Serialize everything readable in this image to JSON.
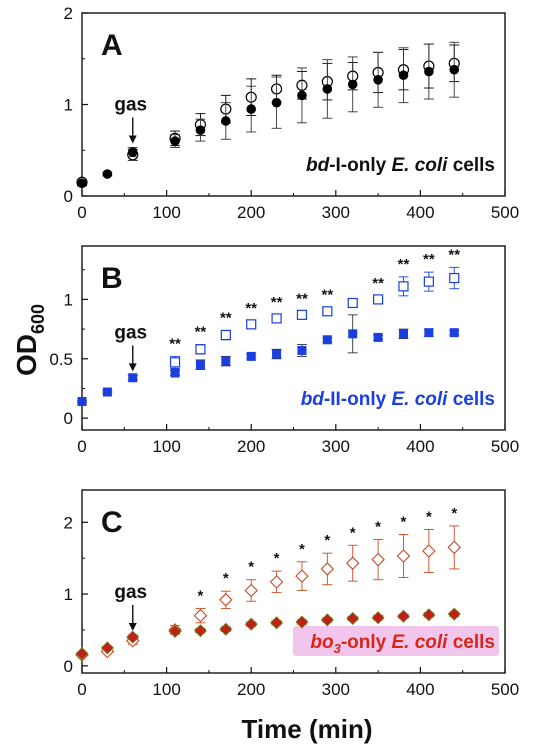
{
  "figure": {
    "ylabel_main": "OD",
    "ylabel_sub": "600",
    "xlabel": "Time (min)"
  },
  "chart_data": [
    {
      "type": "scatter",
      "panel_letter": "A",
      "xlim": [
        0,
        500
      ],
      "ylim": [
        0,
        2
      ],
      "xticks": [
        0,
        100,
        200,
        300,
        400,
        500
      ],
      "yticks": [
        0,
        1,
        2
      ],
      "gas_label": "gas",
      "gas_time": 60,
      "caption_parts": [
        {
          "text": "bd",
          "italic": true
        },
        {
          "text": "-I-only ",
          "italic": false
        },
        {
          "text": "E. coli",
          "italic": true
        },
        {
          "text": " cells",
          "italic": false
        }
      ],
      "caption_color": "#111111",
      "series": [
        {
          "marker": "circle-open",
          "color": "#000000",
          "x": [
            0,
            60,
            110,
            140,
            170,
            200,
            230,
            260,
            290,
            320,
            350,
            380,
            410,
            440
          ],
          "y": [
            0.15,
            0.45,
            0.63,
            0.78,
            0.95,
            1.08,
            1.17,
            1.21,
            1.25,
            1.31,
            1.35,
            1.38,
            1.42,
            1.45
          ],
          "err": [
            0.03,
            0.06,
            0.08,
            0.12,
            0.15,
            0.2,
            0.15,
            0.15,
            0.2,
            0.15,
            0.22,
            0.22,
            0.24,
            0.2
          ],
          "stars": []
        },
        {
          "marker": "circle-filled",
          "color": "#000000",
          "x": [
            0,
            30,
            60,
            110,
            140,
            170,
            200,
            230,
            260,
            290,
            320,
            350,
            380,
            410,
            440
          ],
          "y": [
            0.14,
            0.24,
            0.48,
            0.6,
            0.72,
            0.82,
            0.95,
            1.02,
            1.1,
            1.17,
            1.22,
            1.27,
            1.32,
            1.36,
            1.38
          ],
          "err": [
            0.03,
            0.02,
            0.05,
            0.07,
            0.12,
            0.2,
            0.25,
            0.28,
            0.3,
            0.32,
            0.3,
            0.3,
            0.3,
            0.3,
            0.3
          ],
          "stars": []
        }
      ]
    },
    {
      "type": "scatter",
      "panel_letter": "B",
      "xlim": [
        0,
        500
      ],
      "ylim": [
        -0.1,
        1.45
      ],
      "xticks": [
        0,
        100,
        200,
        300,
        400,
        500
      ],
      "yticks": [
        0,
        0.5,
        1
      ],
      "gas_label": "gas",
      "gas_time": 60,
      "caption_parts": [
        {
          "text": "bd",
          "italic": true
        },
        {
          "text": "-II-only ",
          "italic": false
        },
        {
          "text": "E. coli",
          "italic": true
        },
        {
          "text": " cells",
          "italic": false
        }
      ],
      "caption_color": "#1a3fe0",
      "series": [
        {
          "marker": "square-open",
          "color": "#1a3fe0",
          "x": [
            110,
            140,
            170,
            200,
            230,
            260,
            290,
            320,
            350,
            380,
            410,
            440
          ],
          "y": [
            0.47,
            0.58,
            0.7,
            0.79,
            0.84,
            0.87,
            0.9,
            0.97,
            1.0,
            1.11,
            1.15,
            1.18
          ],
          "err": [
            0.05,
            0.04,
            0.04,
            0.03,
            0.03,
            0.03,
            0.03,
            0.03,
            0.03,
            0.08,
            0.08,
            0.09
          ],
          "stars": [
            "**",
            "**",
            "**",
            "**",
            "**",
            "**",
            "**",
            "",
            "**",
            "**",
            "**",
            "**"
          ]
        },
        {
          "marker": "square-filled",
          "color": "#1a3fe0",
          "x": [
            0,
            30,
            60,
            110,
            140,
            170,
            200,
            230,
            260,
            290,
            320,
            350,
            380,
            410,
            440
          ],
          "y": [
            0.14,
            0.22,
            0.34,
            0.38,
            0.45,
            0.48,
            0.52,
            0.54,
            0.57,
            0.66,
            0.71,
            0.68,
            0.71,
            0.72,
            0.72
          ],
          "err": [
            0.01,
            0.01,
            0.02,
            0.02,
            0.04,
            0.04,
            0.02,
            0.04,
            0.05,
            0.02,
            0.16,
            0.02,
            0.04,
            0.03,
            0.02
          ],
          "stars": []
        }
      ]
    },
    {
      "type": "scatter",
      "panel_letter": "C",
      "xlim": [
        0,
        500
      ],
      "ylim": [
        -0.1,
        2.45
      ],
      "xticks": [
        0,
        100,
        200,
        300,
        400,
        500
      ],
      "yticks": [
        0,
        1,
        2
      ],
      "gas_label": "gas",
      "gas_time": 60,
      "caption_parts": [
        {
          "text": "bo",
          "italic": true
        },
        {
          "text": "3",
          "italic": true,
          "sub": true
        },
        {
          "text": "-only ",
          "italic": false
        },
        {
          "text": "E. coli",
          "italic": true
        },
        {
          "text": " cells",
          "italic": false
        }
      ],
      "caption_color": "#d6261a",
      "caption_highlight": "#f2c6ec",
      "series": [
        {
          "marker": "diamond-open",
          "color": "#c84a22",
          "x": [
            0,
            30,
            60,
            110,
            140,
            170,
            200,
            230,
            260,
            290,
            320,
            350,
            380,
            410,
            440
          ],
          "y": [
            0.15,
            0.2,
            0.35,
            0.5,
            0.7,
            0.92,
            1.05,
            1.17,
            1.25,
            1.35,
            1.43,
            1.48,
            1.53,
            1.6,
            1.65
          ],
          "err": [
            0.02,
            0.02,
            0.05,
            0.06,
            0.1,
            0.12,
            0.15,
            0.15,
            0.2,
            0.22,
            0.25,
            0.28,
            0.3,
            0.3,
            0.3
          ],
          "stars": [
            "",
            "",
            "",
            "",
            "*",
            "*",
            "*",
            "*",
            "*",
            "*",
            "*",
            "*",
            "*",
            "*",
            "*"
          ]
        },
        {
          "marker": "diamond-filled",
          "color": "#c0201a",
          "x": [
            0,
            30,
            60,
            110,
            140,
            170,
            200,
            230,
            260,
            290,
            320,
            350,
            380,
            410,
            440
          ],
          "y": [
            0.17,
            0.25,
            0.4,
            0.48,
            0.49,
            0.51,
            0.58,
            0.6,
            0.61,
            0.64,
            0.66,
            0.67,
            0.69,
            0.71,
            0.72
          ],
          "err": [
            0.02,
            0.02,
            0.03,
            0.03,
            0.03,
            0.03,
            0.03,
            0.03,
            0.03,
            0.03,
            0.03,
            0.03,
            0.03,
            0.03,
            0.03
          ],
          "stars": []
        }
      ]
    }
  ]
}
